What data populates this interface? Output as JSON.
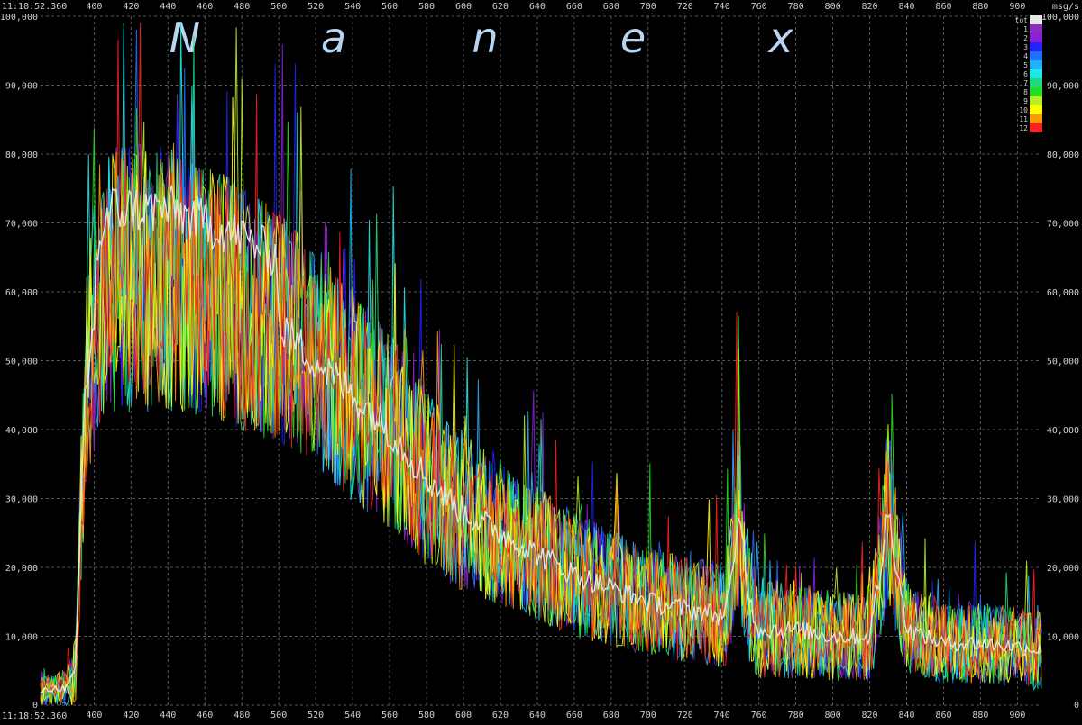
{
  "chart_data": {
    "type": "line",
    "title": "",
    "brand_letters": [
      "N",
      "a",
      "n",
      "e",
      "x"
    ],
    "timestamp_top": "11:18:52.360",
    "timestamp_bottom": "11:18:52.360",
    "units_label": "msg/s",
    "xlim": [
      371,
      913
    ],
    "ylim": [
      0,
      100000
    ],
    "x_ticks": [
      400,
      420,
      440,
      460,
      480,
      500,
      520,
      540,
      560,
      580,
      600,
      620,
      640,
      660,
      680,
      700,
      720,
      740,
      760,
      780,
      800,
      820,
      840,
      860,
      880,
      900
    ],
    "y_ticks": [
      0,
      10000,
      20000,
      30000,
      40000,
      50000,
      60000,
      70000,
      80000,
      90000,
      100000
    ],
    "y_tick_labels": [
      "0",
      "10,000",
      "20,000",
      "30,000",
      "40,000",
      "50,000",
      "60,000",
      "70,000",
      "80,000",
      "90,000",
      "100,000"
    ],
    "grid": true,
    "legend_position": "top-right",
    "envelope_x": [
      371,
      380,
      385,
      390,
      395,
      400,
      410,
      420,
      440,
      460,
      480,
      500,
      520,
      540,
      560,
      580,
      600,
      620,
      640,
      660,
      680,
      700,
      720,
      740,
      745,
      750,
      755,
      760,
      780,
      800,
      820,
      825,
      830,
      835,
      840,
      860,
      880,
      900,
      913
    ],
    "envelope_mean": [
      2000,
      2500,
      2500,
      5000,
      45000,
      55000,
      62000,
      62000,
      62000,
      60000,
      58000,
      55000,
      50000,
      45000,
      40000,
      33000,
      28000,
      25000,
      22000,
      19000,
      17000,
      15000,
      14000,
      13000,
      17000,
      28000,
      15000,
      11000,
      11000,
      10000,
      10000,
      18000,
      28000,
      20000,
      11000,
      9000,
      9000,
      8500,
      8000
    ],
    "envelope_spread": [
      1500,
      2000,
      2000,
      4000,
      12000,
      14000,
      15000,
      15000,
      15000,
      14000,
      14000,
      13000,
      12000,
      12000,
      11000,
      10000,
      9000,
      8000,
      7500,
      7000,
      6500,
      6000,
      6000,
      6000,
      8000,
      12000,
      7000,
      5500,
      5500,
      5000,
      5000,
      8000,
      10000,
      8000,
      5000,
      4500,
      4500,
      4500,
      4500
    ],
    "series": [
      {
        "name": "tot",
        "color": "#e8e8e8"
      },
      {
        "name": "1",
        "color": "#8b2bc4"
      },
      {
        "name": "2",
        "color": "#8a1fd8"
      },
      {
        "name": "3",
        "color": "#2222ff"
      },
      {
        "name": "4",
        "color": "#1f6fff"
      },
      {
        "name": "5",
        "color": "#20b0ff"
      },
      {
        "name": "6",
        "color": "#1fe8e8"
      },
      {
        "name": "7",
        "color": "#20d880"
      },
      {
        "name": "8",
        "color": "#22dd22"
      },
      {
        "name": "9",
        "color": "#b8f020"
      },
      {
        "name": "10",
        "color": "#ffff00"
      },
      {
        "name": "11",
        "color": "#ff9900"
      },
      {
        "name": "12",
        "color": "#ff2020"
      }
    ]
  }
}
